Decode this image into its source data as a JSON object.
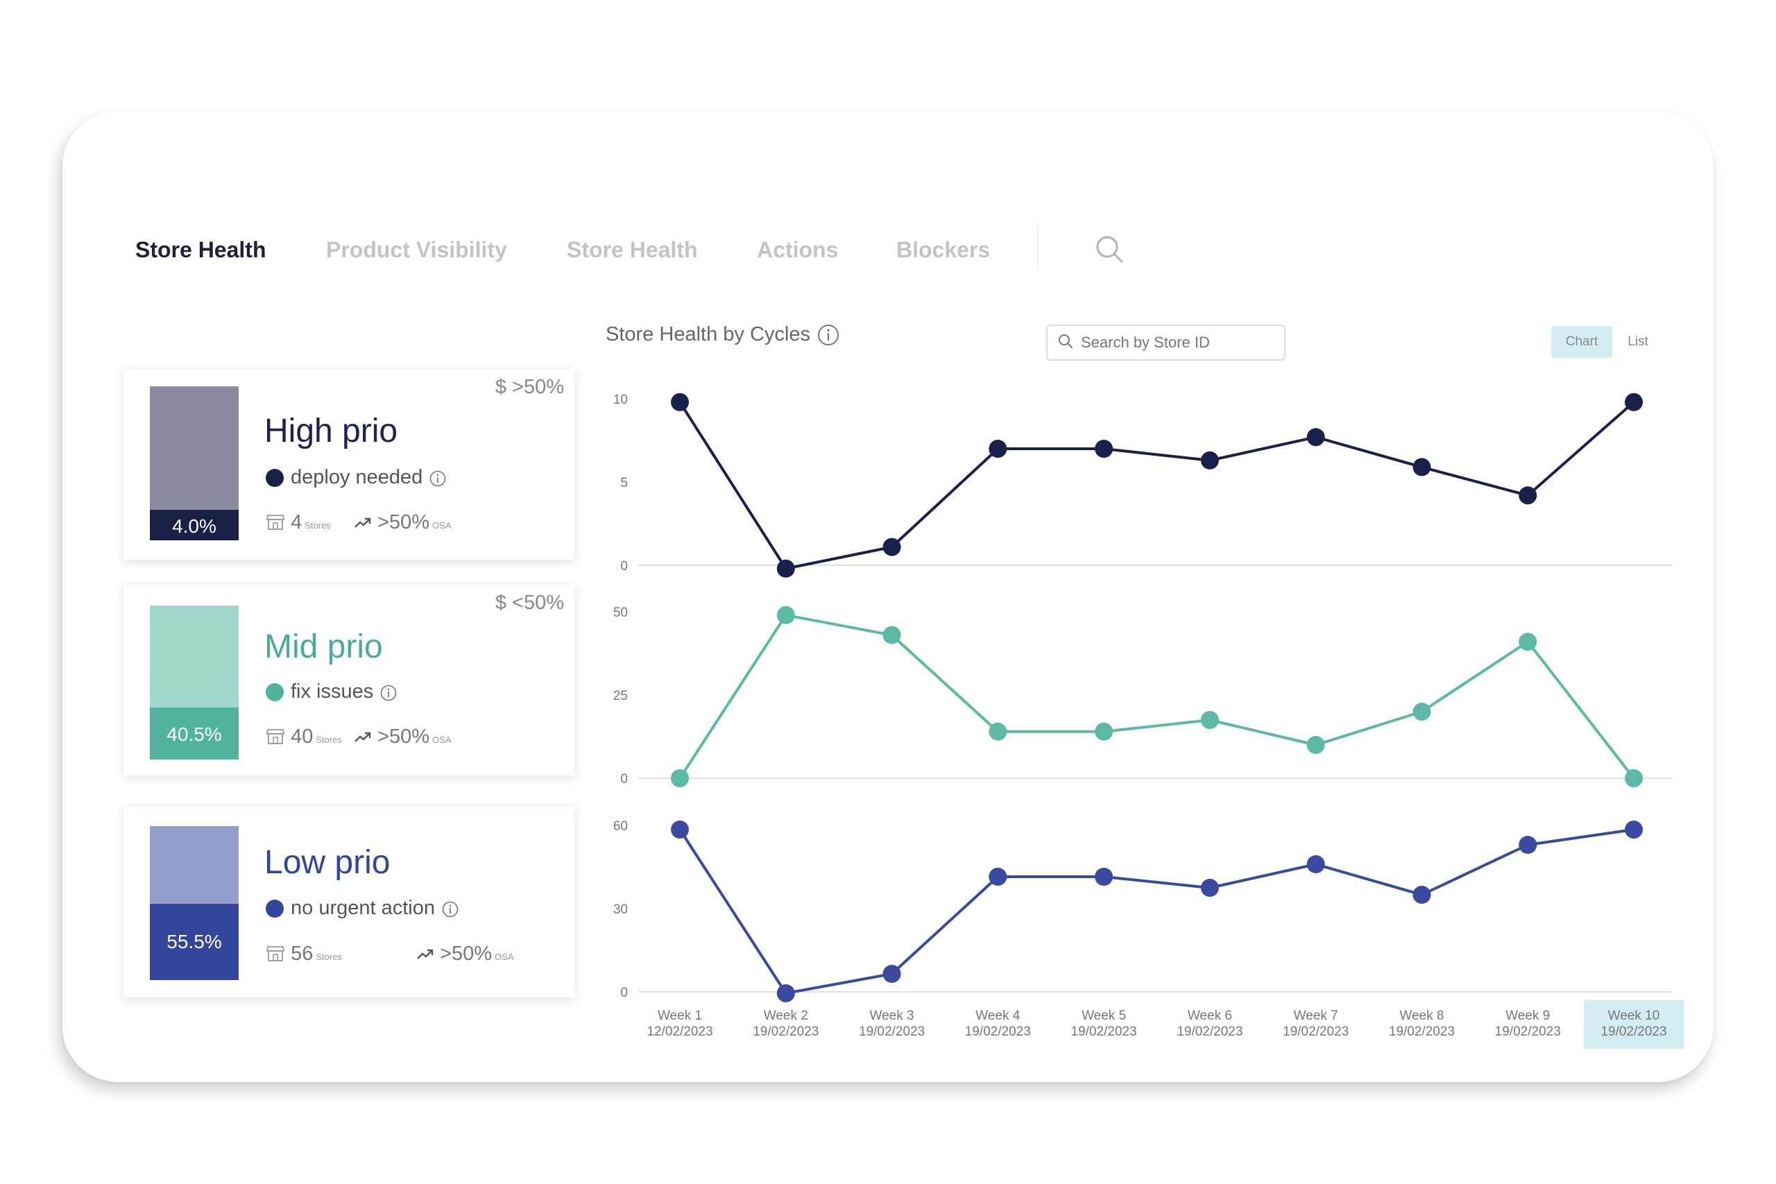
{
  "tabs": [
    {
      "label": "Store Health",
      "active": true
    },
    {
      "label": "Product Visibility",
      "active": false
    },
    {
      "label": "Store Health",
      "active": false
    },
    {
      "label": "Actions",
      "active": false
    },
    {
      "label": "Blockers",
      "active": false
    }
  ],
  "cards": [
    {
      "title": "High prio",
      "percent_label": "4.0%",
      "percent": 4.0,
      "desc": "deploy needed",
      "stores_count": "4",
      "stores_unit": "Stores",
      "osa_value": ">50%",
      "osa_unit": "OSA",
      "threshold": "$ >50%",
      "colors": {
        "title": "#1c2353",
        "dot": "#1a1f45",
        "bar_top": "#8a8ba3",
        "bar_bottom": "#1a1f45"
      }
    },
    {
      "title": "Mid prio",
      "percent_label": "40.5%",
      "percent": 40.5,
      "desc": "fix issues",
      "stores_count": "40",
      "stores_unit": "Stores",
      "osa_value": ">50%",
      "osa_unit": "OSA",
      "threshold": "$ <50%",
      "colors": {
        "title": "#48ad98",
        "dot": "#4fb39c",
        "bar_top": "#a1d8cb",
        "bar_bottom": "#52b49d"
      }
    },
    {
      "title": "Low prio",
      "percent_label": "55.5%",
      "percent": 55.5,
      "desc": "no urgent action",
      "stores_count": "56",
      "stores_unit": "Stores",
      "osa_value": ">50%",
      "osa_unit": "OSA",
      "threshold": "",
      "colors": {
        "title": "#33449a",
        "dot": "#35469e",
        "bar_top": "#959dca",
        "bar_bottom": "#33459c"
      }
    }
  ],
  "chart_panel": {
    "title": "Store Health by Cycles",
    "search_placeholder": "Search by Store ID",
    "view_chart": "Chart",
    "view_list": "List",
    "active_view": "Chart"
  },
  "chart_data": {
    "type": "line",
    "title": "Store Health by Cycles",
    "x": [
      "Week 1",
      "Week 2",
      "Week 3",
      "Week 4",
      "Week 5",
      "Week 6",
      "Week 7",
      "Week 8",
      "Week 9",
      "Week 10"
    ],
    "x_dates": [
      "12/02/2023",
      "19/02/2023",
      "19/02/2023",
      "19/02/2023",
      "19/02/2023",
      "19/02/2023",
      "19/02/2023",
      "19/02/2023",
      "19/02/2023",
      "19/02/2023"
    ],
    "highlighted_x": "Week 10",
    "grid": false,
    "panels": [
      {
        "color": "#1a1f4b",
        "ylim": [
          0,
          10
        ],
        "ticks": [
          "10",
          "5",
          "0"
        ],
        "values": [
          9.8,
          -0.2,
          1.1,
          7.0,
          7.0,
          6.3,
          7.7,
          5.9,
          4.2,
          9.8
        ]
      },
      {
        "color": "#5bb9a5",
        "ylim": [
          0,
          50
        ],
        "ticks": [
          "50",
          "25",
          "0"
        ],
        "values": [
          0,
          49,
          43,
          14,
          14,
          17.5,
          10,
          20,
          41,
          0
        ]
      },
      {
        "color": "#3a4aa0",
        "ylim": [
          0,
          60
        ],
        "ticks": [
          "60",
          "30",
          "0"
        ],
        "values": [
          58.5,
          -0.5,
          6.5,
          41.5,
          41.5,
          37.5,
          46,
          35,
          53,
          58.5
        ]
      }
    ]
  }
}
